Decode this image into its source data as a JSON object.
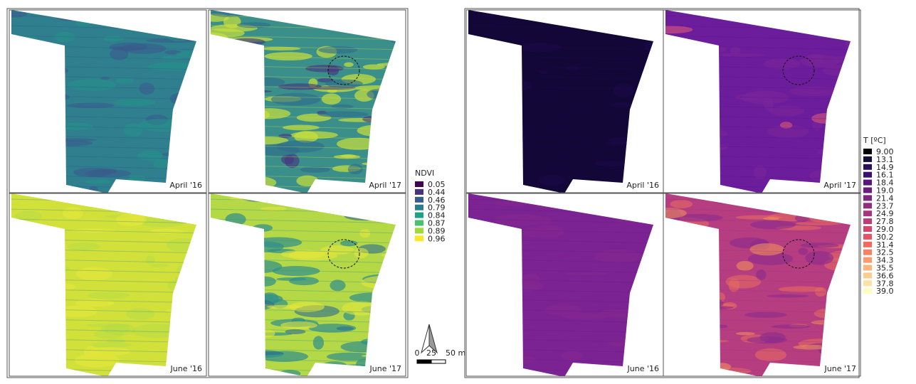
{
  "ndvi_map": {
    "panels": [
      "April '16",
      "April '17",
      "June '16",
      "June '17"
    ]
  },
  "ndvi_legend": {
    "title": "NDVI",
    "entries": [
      "0.05",
      "0.44",
      "0.46",
      "0.79",
      "0.84",
      "0.87",
      "0.89",
      "0.96"
    ]
  },
  "scale_bar": {
    "labels": [
      "0",
      "25",
      "50 m"
    ]
  },
  "thermal_map": {
    "panels": [
      "April '16",
      "April '17",
      "June '16",
      "June '17"
    ]
  },
  "thermal_legend": {
    "title": "T [ºC]",
    "entries": [
      "9.00",
      "13.1",
      "14.9",
      "16.1",
      "18.4",
      "19.0",
      "21.4",
      "23.7",
      "24.9",
      "27.8",
      "29.0",
      "30.2",
      "31.4",
      "32.5",
      "34.3",
      "35.5",
      "36.6",
      "37.8",
      "39.0"
    ]
  }
}
